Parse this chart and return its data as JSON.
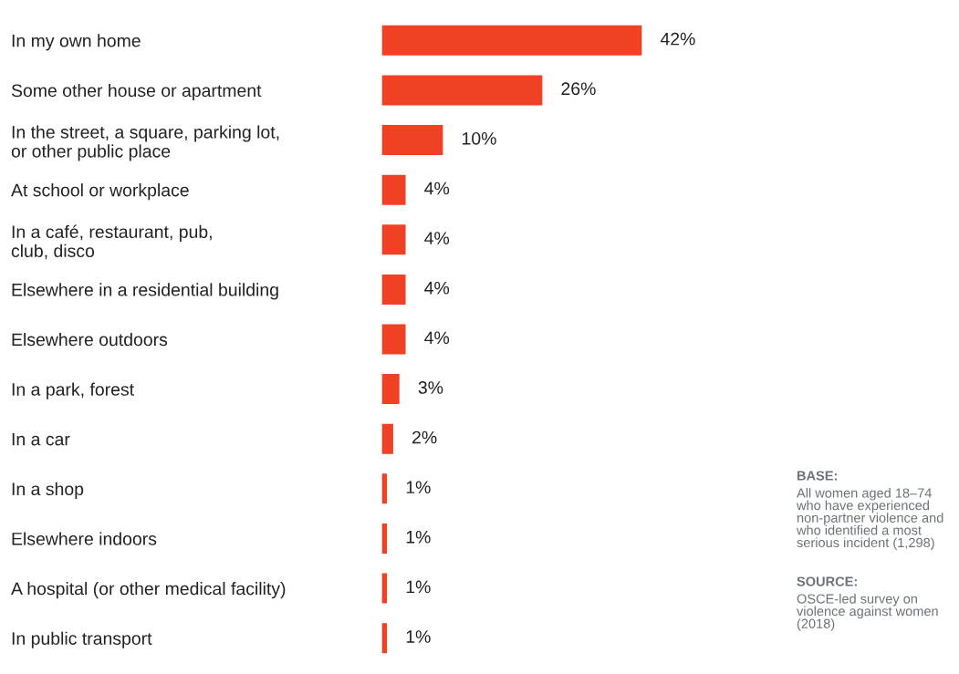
{
  "chart_data": {
    "type": "bar",
    "orientation": "horizontal",
    "categories": [
      "In my own home",
      "Some other house or apartment",
      "In the street, a square, parking lot,\nor other public place",
      "At school or workplace",
      "In a café, restaurant, pub,\nclub, disco",
      "Elsewhere in a residential building",
      "Elsewhere outdoors",
      "In a park, forest",
      "In a car",
      "In a shop",
      "Elsewhere indoors",
      "A hospital (or other medical facility)",
      "In public transport"
    ],
    "values": [
      42,
      26,
      10,
      4,
      4,
      4,
      4,
      3,
      2,
      1,
      1,
      1,
      1
    ],
    "value_labels": [
      "42%",
      "26%",
      "10%",
      "4%",
      "4%",
      "4%",
      "4%",
      "3%",
      "2%",
      "1%",
      "1%",
      "1%",
      "1%"
    ],
    "color": "#f04124",
    "tick_labels": "y",
    "grid": false,
    "legend": false,
    "annotations": [
      "BASE:",
      "All women aged 18–74\nwho have experienced\nnon-partner violence and\nwho identified a most\nserious incident (1,298)",
      "SOURCE:",
      "OSCE-led survey on\nviolence against women\n(2018)"
    ]
  }
}
